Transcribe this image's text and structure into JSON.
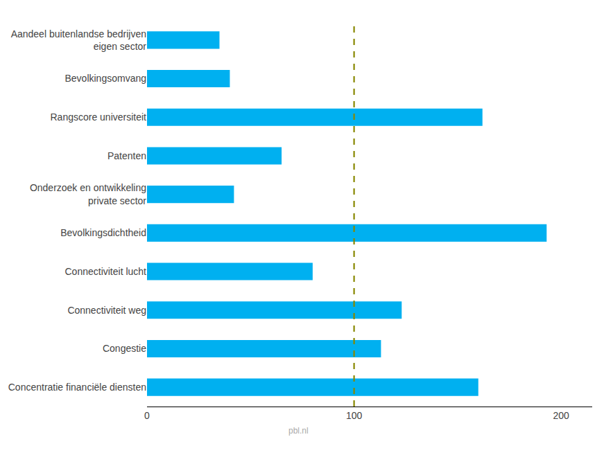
{
  "chart_data": {
    "type": "bar",
    "orientation": "horizontal",
    "categories": [
      "Concentratie financiële diensten",
      "Congestie",
      "Connectiviteit weg",
      "Connectiviteit lucht",
      "Bevolkingsdichtheid",
      "Onderzoek en ontwikkeling\nprivate sector",
      "Patenten",
      "Rangscore universiteit",
      "Bevolkingsomvang",
      "Aandeel buitenlandse bedrijven\neigen sector"
    ],
    "values": [
      160,
      113,
      123,
      80,
      193,
      42,
      65,
      162,
      40,
      35
    ],
    "color": "#00b0f0",
    "xlim": [
      0,
      215
    ],
    "xticks": [
      0,
      100,
      200
    ],
    "grid": false,
    "reference_line": {
      "value": 100,
      "color": "#888800",
      "line_style": "dashed"
    },
    "annotations": [
      "pbl.nl"
    ]
  }
}
